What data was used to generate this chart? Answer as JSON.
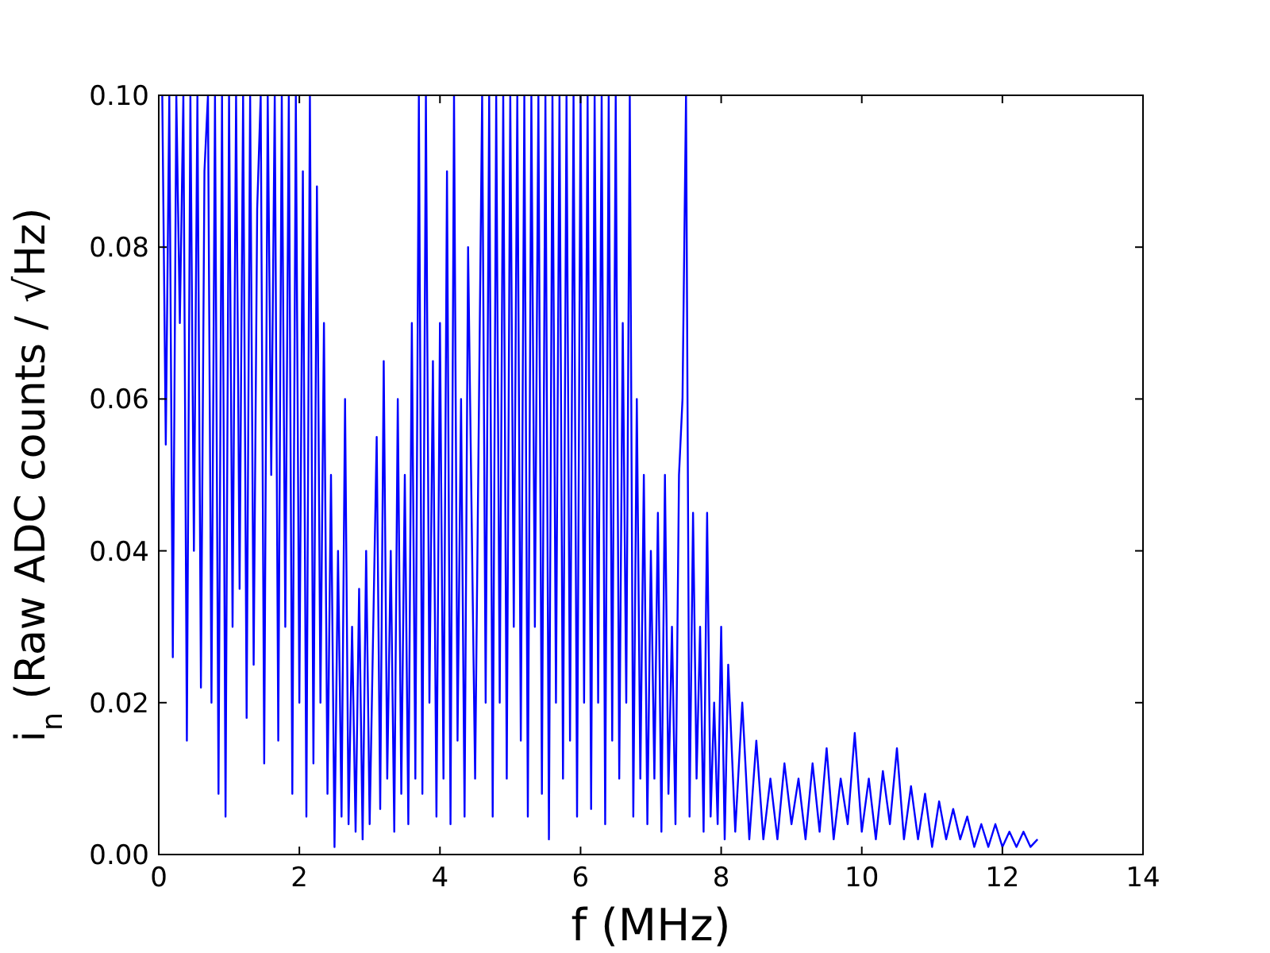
{
  "chart_data": {
    "type": "line",
    "xlabel": "f (MHz)",
    "ylabel": "i$_{n}$  (Raw ADC counts / √Hz)",
    "xlim": [
      0,
      14
    ],
    "xticks": [
      0,
      2,
      4,
      6,
      8,
      10,
      12,
      14
    ],
    "ylim": [
      0,
      0.1
    ],
    "yticks": [
      {
        "value": 0,
        "label": "0.00"
      },
      {
        "value": 0.02,
        "label": "0.02"
      },
      {
        "value": 0.04,
        "label": "0.04"
      },
      {
        "value": 0.06,
        "label": "0.06"
      },
      {
        "value": 0.08,
        "label": "0.08"
      },
      {
        "value": 0.1,
        "label": "0.10"
      }
    ],
    "grid": false,
    "series": [
      {
        "color": "#0000ff",
        "x": [
          0.05,
          0.1,
          0.15,
          0.2,
          0.25,
          0.3,
          0.35,
          0.4,
          0.45,
          0.5,
          0.55,
          0.6,
          0.65,
          0.7,
          0.75,
          0.8,
          0.85,
          0.9,
          0.95,
          1.0,
          1.05,
          1.1,
          1.15,
          1.2,
          1.25,
          1.3,
          1.35,
          1.4,
          1.45,
          1.5,
          1.55,
          1.6,
          1.65,
          1.7,
          1.75,
          1.8,
          1.85,
          1.9,
          1.95,
          2.0,
          2.05,
          2.1,
          2.15,
          2.2,
          2.25,
          2.3,
          2.35,
          2.4,
          2.45,
          2.5,
          2.55,
          2.6,
          2.65,
          2.7,
          2.75,
          2.8,
          2.85,
          2.9,
          2.95,
          3.0,
          3.1,
          3.15,
          3.2,
          3.25,
          3.3,
          3.35,
          3.4,
          3.45,
          3.5,
          3.55,
          3.6,
          3.65,
          3.7,
          3.75,
          3.8,
          3.85,
          3.9,
          3.95,
          4.0,
          4.05,
          4.1,
          4.15,
          4.2,
          4.25,
          4.3,
          4.35,
          4.4,
          4.5,
          4.6,
          4.65,
          4.7,
          4.75,
          4.8,
          4.85,
          4.9,
          4.95,
          5.0,
          5.05,
          5.1,
          5.15,
          5.2,
          5.25,
          5.3,
          5.35,
          5.4,
          5.45,
          5.5,
          5.55,
          5.6,
          5.65,
          5.7,
          5.75,
          5.8,
          5.85,
          5.9,
          5.95,
          6.0,
          6.05,
          6.1,
          6.15,
          6.2,
          6.25,
          6.3,
          6.35,
          6.4,
          6.45,
          6.5,
          6.55,
          6.6,
          6.65,
          6.7,
          6.75,
          6.8,
          6.85,
          6.9,
          6.95,
          7.0,
          7.05,
          7.1,
          7.15,
          7.2,
          7.25,
          7.3,
          7.35,
          7.4,
          7.45,
          7.5,
          7.55,
          7.6,
          7.65,
          7.7,
          7.75,
          7.8,
          7.85,
          7.9,
          7.95,
          8.0,
          8.05,
          8.1,
          8.2,
          8.3,
          8.4,
          8.5,
          8.6,
          8.7,
          8.8,
          8.9,
          9.0,
          9.1,
          9.2,
          9.3,
          9.4,
          9.5,
          9.6,
          9.7,
          9.8,
          9.9,
          10.0,
          10.1,
          10.2,
          10.3,
          10.4,
          10.5,
          10.6,
          10.7,
          10.8,
          10.9,
          11.0,
          11.1,
          11.2,
          11.3,
          11.4,
          11.5,
          11.6,
          11.7,
          11.8,
          11.9,
          12.0,
          12.1,
          12.2,
          12.3,
          12.4,
          12.5
        ],
        "values": [
          0.1,
          0.054,
          0.1,
          0.026,
          0.1,
          0.07,
          0.1,
          0.015,
          0.1,
          0.04,
          0.1,
          0.022,
          0.09,
          0.1,
          0.02,
          0.1,
          0.008,
          0.1,
          0.005,
          0.1,
          0.03,
          0.1,
          0.035,
          0.1,
          0.018,
          0.1,
          0.025,
          0.085,
          0.1,
          0.012,
          0.1,
          0.05,
          0.1,
          0.015,
          0.1,
          0.03,
          0.1,
          0.008,
          0.1,
          0.02,
          0.09,
          0.005,
          0.1,
          0.012,
          0.088,
          0.02,
          0.07,
          0.008,
          0.05,
          0.001,
          0.04,
          0.005,
          0.06,
          0.004,
          0.03,
          0.003,
          0.035,
          0.002,
          0.04,
          0.004,
          0.055,
          0.006,
          0.065,
          0.01,
          0.04,
          0.003,
          0.06,
          0.008,
          0.05,
          0.004,
          0.07,
          0.01,
          0.1,
          0.008,
          0.1,
          0.02,
          0.065,
          0.005,
          0.07,
          0.01,
          0.09,
          0.004,
          0.1,
          0.015,
          0.06,
          0.005,
          0.08,
          0.01,
          0.1,
          0.02,
          0.1,
          0.005,
          0.1,
          0.02,
          0.1,
          0.01,
          0.1,
          0.03,
          0.1,
          0.015,
          0.1,
          0.005,
          0.1,
          0.03,
          0.1,
          0.008,
          0.1,
          0.002,
          0.1,
          0.02,
          0.1,
          0.01,
          0.1,
          0.015,
          0.1,
          0.005,
          0.1,
          0.02,
          0.1,
          0.006,
          0.1,
          0.02,
          0.1,
          0.004,
          0.1,
          0.015,
          0.1,
          0.01,
          0.07,
          0.02,
          0.1,
          0.005,
          0.06,
          0.01,
          0.05,
          0.004,
          0.04,
          0.01,
          0.045,
          0.003,
          0.05,
          0.008,
          0.03,
          0.004,
          0.05,
          0.06,
          0.1,
          0.005,
          0.045,
          0.01,
          0.03,
          0.003,
          0.045,
          0.005,
          0.02,
          0.004,
          0.03,
          0.002,
          0.025,
          0.003,
          0.02,
          0.002,
          0.015,
          0.002,
          0.01,
          0.002,
          0.012,
          0.004,
          0.01,
          0.002,
          0.012,
          0.003,
          0.014,
          0.002,
          0.01,
          0.004,
          0.016,
          0.003,
          0.01,
          0.002,
          0.011,
          0.004,
          0.014,
          0.002,
          0.009,
          0.002,
          0.008,
          0.001,
          0.007,
          0.002,
          0.006,
          0.002,
          0.005,
          0.001,
          0.004,
          0.001,
          0.004,
          0.001,
          0.003,
          0.001,
          0.003,
          0.001,
          0.002
        ]
      }
    ]
  }
}
